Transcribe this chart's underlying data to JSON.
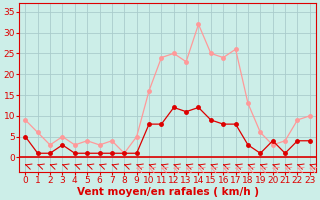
{
  "hours": [
    0,
    1,
    2,
    3,
    4,
    5,
    6,
    7,
    8,
    9,
    10,
    11,
    12,
    13,
    14,
    15,
    16,
    17,
    18,
    19,
    20,
    21,
    22,
    23
  ],
  "wind_avg": [
    5,
    1,
    1,
    3,
    1,
    1,
    1,
    1,
    1,
    1,
    8,
    8,
    12,
    11,
    12,
    9,
    8,
    8,
    3,
    1,
    4,
    1,
    4,
    4
  ],
  "wind_gust": [
    9,
    6,
    3,
    5,
    3,
    4,
    3,
    4,
    1,
    5,
    16,
    24,
    25,
    23,
    32,
    25,
    24,
    26,
    13,
    6,
    3,
    4,
    9,
    10
  ],
  "bg_color": "#cceee8",
  "grid_color": "#aacccc",
  "line_avg_color": "#dd0000",
  "line_gust_color": "#ff9999",
  "xlabel": "Vent moyen/en rafales ( km/h )",
  "yticks": [
    0,
    5,
    10,
    15,
    20,
    25,
    30,
    35
  ],
  "ylim": [
    -3.5,
    37
  ],
  "xlim": [
    -0.5,
    23.5
  ],
  "tick_color": "#dd0000",
  "label_fontsize": 6.5,
  "xlabel_fontsize": 7.5
}
